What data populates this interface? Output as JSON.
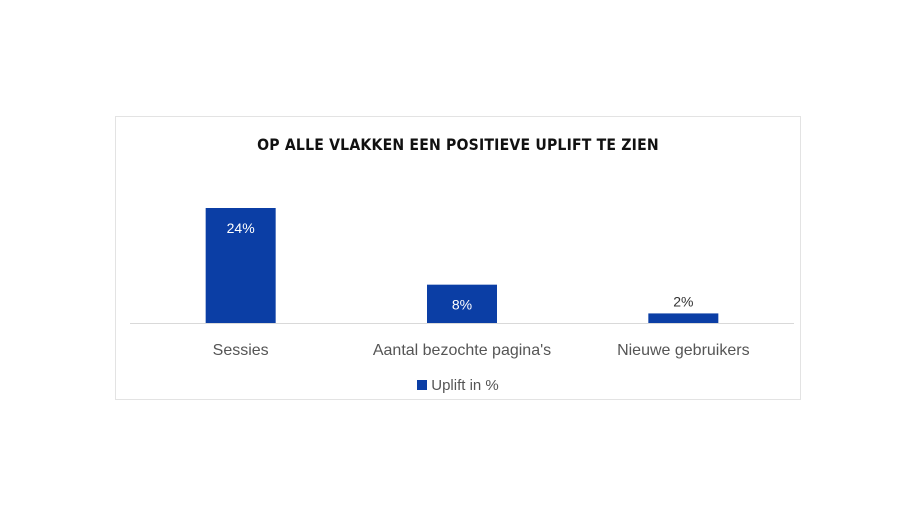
{
  "chart_data": {
    "type": "bar",
    "title": "OP ALLE VLAKKEN EEN POSITIEVE UPLIFT TE ZIEN",
    "categories": [
      "Sessies",
      "Aantal bezochte pagina's",
      "Nieuwe gebruikers"
    ],
    "series": [
      {
        "name": "Uplift in %",
        "values": [
          24,
          8,
          2
        ],
        "labels": [
          "24%",
          "8%",
          "2%"
        ],
        "color": "#0b3ea5"
      }
    ],
    "ylim": [
      0,
      26
    ],
    "grid": false,
    "legend": "bottom"
  }
}
